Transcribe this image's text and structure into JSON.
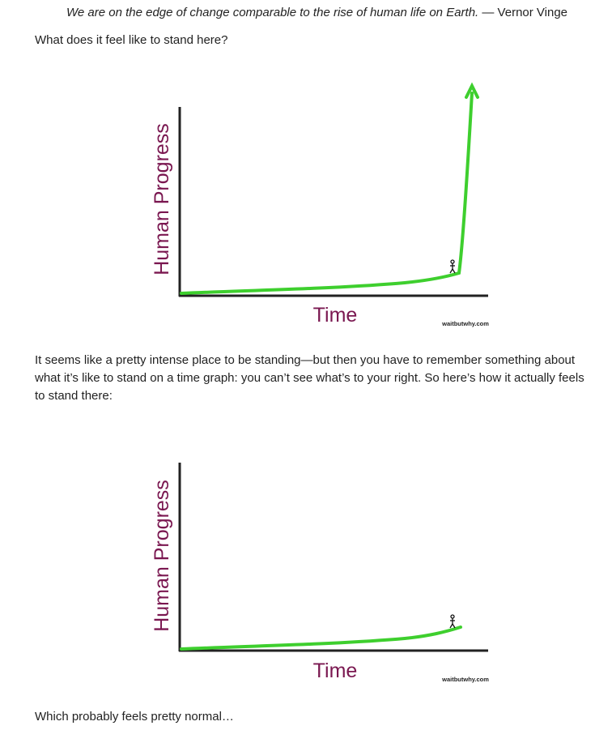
{
  "quote": {
    "text": "We are on the edge of change comparable to the rise of human life on Earth.",
    "attribution": "— Vernor Vinge"
  },
  "paragraphs": [
    "What does it feel like to stand here?",
    "It seems like a pretty intense place to be standing—but then you have to remember something about what it’s like to stand on a time graph: you can’t see what’s to your right. So here’s how it actually feels to stand there:",
    "Which probably feels pretty normal…"
  ],
  "figures": [
    {
      "y_label": "Human Progress",
      "x_label": "Time",
      "credit": "waitbutwhy.com"
    },
    {
      "y_label": "Human Progress",
      "x_label": "Time",
      "credit": "waitbutwhy.com"
    }
  ]
}
